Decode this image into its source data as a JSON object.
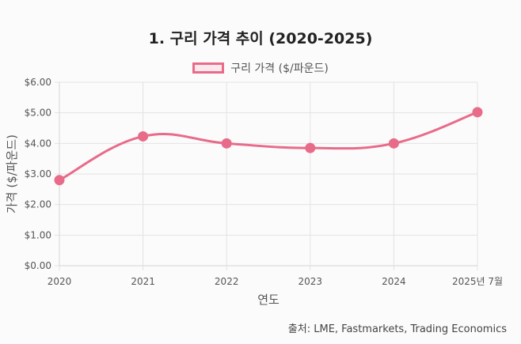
{
  "chart_data": {
    "type": "line",
    "title": "1. 구리 가격 추이 (2020-2025)",
    "categories": [
      "2020",
      "2021",
      "2022",
      "2023",
      "2024",
      "2025년 7월"
    ],
    "series": [
      {
        "name": "구리 가격 ($/파운드)",
        "values": [
          2.8,
          4.23,
          4.0,
          3.85,
          4.0,
          5.02
        ],
        "color": "#e86b8a",
        "fill": "#fde8ee"
      }
    ],
    "xlabel": "연도",
    "ylabel": "가격 ($/파운드)",
    "ylim": [
      0,
      6
    ],
    "y_ticks": [
      "$0.00",
      "$1.00",
      "$2.00",
      "$3.00",
      "$4.00",
      "$5.00",
      "$6.00"
    ],
    "grid": true,
    "legend": "top-center"
  },
  "source_note": "출처: LME, Fastmarkets, Trading Economics"
}
